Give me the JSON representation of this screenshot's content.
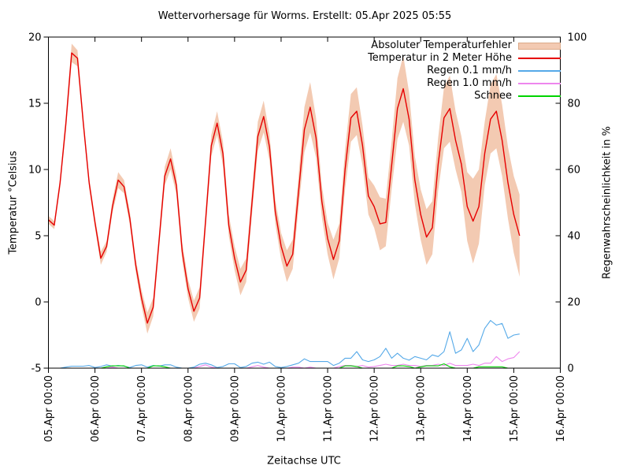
{
  "title": "Wettervorhersage für Worms. Erstellt: 05.Apr 2025 05:55",
  "chart_data": {
    "type": "line",
    "title": "Wettervorhersage für Worms. Erstellt: 05.Apr 2025 05:55",
    "background": "#ffffff",
    "frame_color": "#000000",
    "grid": false,
    "legend_position": "top-right-inside",
    "x_axis": {
      "label": "Zeitachse UTC",
      "tick_labels": [
        "05.Apr 00:00",
        "06.Apr 00:00",
        "07.Apr 00:00",
        "08.Apr 00:00",
        "09.Apr 00:00",
        "10.Apr 00:00",
        "11.Apr 00:00",
        "12.Apr 00:00",
        "13.Apr 00:00",
        "14.Apr 00:00",
        "15.Apr 00:00",
        "16.Apr 00:00"
      ],
      "range_hours": [
        0,
        264
      ]
    },
    "y_axis_left": {
      "label": "Temperatur °Celsius",
      "range": [
        -5,
        20
      ],
      "ticks": [
        -5,
        0,
        5,
        10,
        15,
        20
      ]
    },
    "y_axis_right": {
      "label": "Regenwahrscheinlichkeit in %",
      "range": [
        0,
        100
      ],
      "ticks": [
        0,
        20,
        40,
        60,
        80,
        100
      ]
    },
    "sample_interval_hours": 3,
    "start_hour": 0,
    "series": [
      {
        "name": "Absoluter Temperaturfehler",
        "type": "band",
        "axis": "left",
        "color": "#f3cab2",
        "half_width": [
          0.3,
          0.3,
          0.4,
          0.6,
          0.7,
          0.6,
          0.5,
          0.4,
          0.4,
          0.5,
          0.4,
          0.5,
          0.6,
          0.5,
          0.5,
          0.5,
          0.6,
          0.8,
          0.7,
          0.6,
          0.7,
          0.8,
          0.7,
          0.7,
          0.7,
          0.8,
          0.8,
          0.7,
          0.8,
          0.9,
          0.9,
          0.8,
          0.9,
          1.0,
          0.9,
          0.9,
          1.1,
          1.2,
          1.0,
          0.9,
          1.0,
          1.2,
          1.1,
          1.2,
          1.7,
          1.9,
          1.5,
          1.2,
          1.2,
          1.5,
          1.3,
          1.5,
          1.8,
          1.8,
          1.5,
          1.4,
          1.6,
          2.0,
          1.8,
          1.8,
          2.3,
          2.5,
          2.0,
          1.8,
          1.9,
          2.1,
          2.0,
          2.0,
          2.3,
          2.5,
          2.2,
          2.1,
          2.6,
          3.2,
          2.8,
          2.4,
          2.6,
          2.8,
          2.7,
          2.7,
          2.9,
          3.1
        ]
      },
      {
        "name": "Temperatur in 2 Meter Höhe",
        "type": "line",
        "axis": "left",
        "color": "#e60000",
        "values": [
          6.2,
          5.8,
          9.0,
          13.5,
          18.8,
          18.4,
          13.5,
          9.0,
          6.0,
          3.3,
          4.2,
          7.2,
          9.2,
          8.7,
          6.3,
          2.8,
          0.3,
          -1.6,
          -0.4,
          4.5,
          9.5,
          10.8,
          8.8,
          3.8,
          1.0,
          -0.7,
          0.3,
          6.0,
          11.8,
          13.5,
          11.2,
          5.8,
          3.3,
          1.5,
          2.4,
          7.5,
          12.5,
          14.0,
          11.7,
          6.8,
          4.2,
          2.7,
          3.6,
          8.3,
          13.0,
          14.7,
          12.4,
          7.6,
          4.8,
          3.2,
          4.6,
          10.0,
          13.9,
          14.4,
          11.8,
          8.0,
          7.2,
          5.9,
          6.0,
          10.3,
          14.6,
          16.1,
          13.8,
          9.2,
          6.6,
          4.9,
          5.6,
          10.4,
          13.9,
          14.6,
          12.2,
          10.4,
          7.2,
          6.1,
          7.2,
          11.2,
          13.8,
          14.4,
          12.2,
          9.0,
          6.6,
          5.0
        ]
      },
      {
        "name": "Regen 0.1 mm/h",
        "type": "line",
        "axis": "right",
        "color": "#55a9e8",
        "values": [
          0,
          0,
          0,
          0.3,
          0.6,
          0.6,
          0.6,
          0.8,
          0.2,
          0.5,
          1.0,
          0.6,
          0.8,
          0.6,
          0.2,
          0.8,
          1.0,
          0.3,
          0.8,
          0.6,
          1.0,
          1.0,
          0.3,
          0,
          0,
          0.3,
          1.2,
          1.5,
          1.0,
          0.2,
          0.5,
          1.3,
          1.3,
          0.2,
          0.5,
          1.5,
          1.8,
          1.2,
          1.8,
          0.5,
          0.2,
          0.5,
          1.0,
          1.5,
          2.8,
          2.0,
          2.0,
          2.0,
          2.0,
          0.8,
          1.5,
          3.0,
          3.0,
          5.0,
          2.5,
          2.0,
          2.5,
          3.5,
          6.0,
          3.0,
          4.5,
          3.0,
          2.4,
          3.5,
          3.0,
          2.5,
          4.0,
          3.5,
          5.0,
          11.0,
          4.5,
          5.5,
          9.0,
          5.0,
          7.0,
          12.0,
          14.4,
          13.0,
          13.5,
          9.0,
          10.0,
          10.3
        ]
      },
      {
        "name": "Regen 1.0 mm/h",
        "type": "line",
        "axis": "right",
        "color": "#ee86ee",
        "values": [
          0,
          0,
          0,
          0,
          0,
          0,
          0,
          0,
          0,
          0,
          0,
          0.3,
          0,
          0,
          0,
          0,
          0,
          0,
          0,
          0,
          0,
          0,
          0,
          0,
          0,
          0,
          0.5,
          1.0,
          0.3,
          0,
          0,
          0,
          0,
          0,
          0,
          0.4,
          0.8,
          0.3,
          0,
          0,
          0,
          0,
          0.3,
          0.3,
          0,
          0.3,
          0,
          0,
          0,
          0,
          0.5,
          0.8,
          0.8,
          0.5,
          0.8,
          0.3,
          0.5,
          0.8,
          1.2,
          0.8,
          0.8,
          1.2,
          0.8,
          0.8,
          0.5,
          0.8,
          0.8,
          1.2,
          0.8,
          1.5,
          0.8,
          0.8,
          0.8,
          1.2,
          0.8,
          1.5,
          1.5,
          3.5,
          2.0,
          2.8,
          3.2,
          5.0
        ]
      },
      {
        "name": "Schnee",
        "type": "line",
        "axis": "right",
        "color": "#00d400",
        "values": [
          0,
          0,
          0,
          0,
          0,
          0,
          0,
          0,
          0,
          0,
          0.4,
          0.7,
          0.7,
          0.7,
          0,
          0,
          0,
          0,
          0.7,
          0.7,
          0.4,
          0,
          0,
          0,
          0,
          0,
          0,
          0,
          0,
          0,
          0,
          0,
          0,
          0,
          0,
          0,
          0,
          0,
          0,
          0,
          0,
          0,
          0,
          0,
          0,
          0,
          0,
          0,
          0,
          0,
          0,
          0.7,
          0.7,
          0.5,
          0,
          0,
          0,
          0,
          0,
          0,
          0.7,
          0.7,
          0.5,
          0,
          0.4,
          0.7,
          0.7,
          0.7,
          1.3,
          0.4,
          0,
          0,
          0,
          0,
          0.4,
          0.4,
          0.4,
          0.4,
          0.4,
          0,
          0,
          0
        ]
      }
    ]
  }
}
